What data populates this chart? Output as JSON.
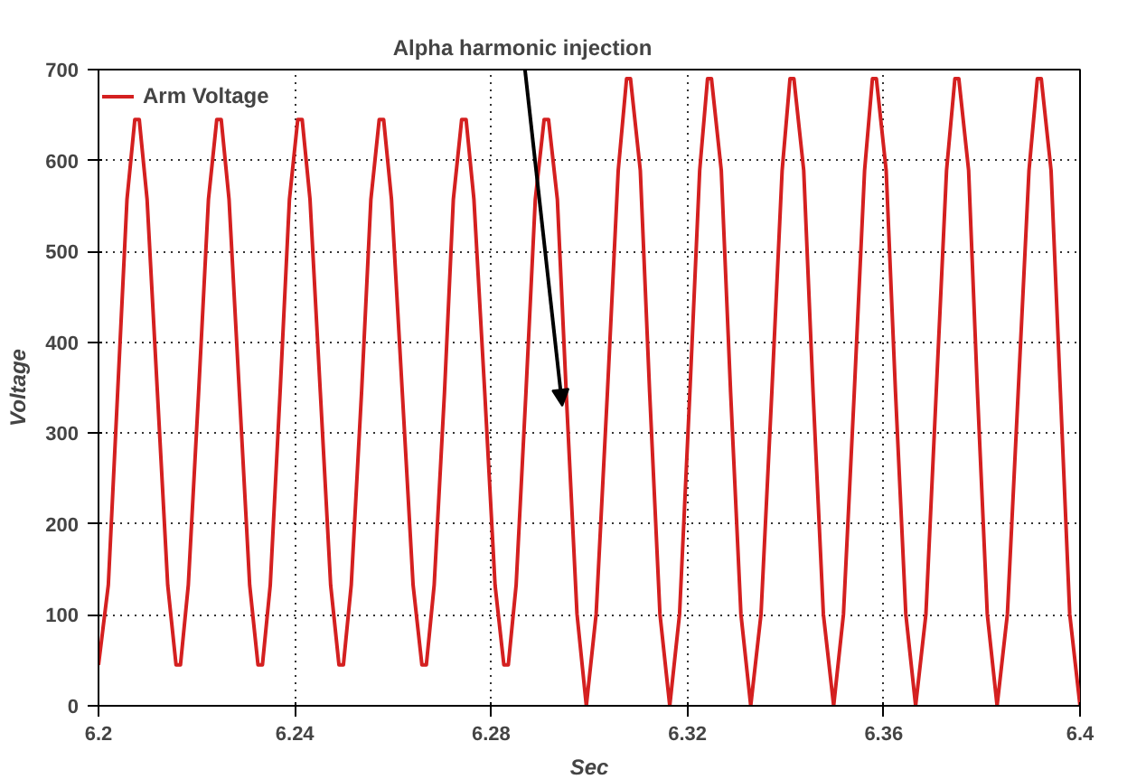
{
  "chart_data": {
    "type": "line",
    "xlabel": "Sec",
    "ylabel": "Voltage",
    "xlim": [
      6.2,
      6.4
    ],
    "ylim": [
      0,
      700
    ],
    "xticks": [
      6.2,
      6.24,
      6.28,
      6.32,
      6.36,
      6.4
    ],
    "yticks": [
      0,
      100,
      200,
      300,
      400,
      500,
      600,
      700
    ],
    "grid": true,
    "legend": "top left",
    "line_style": "solid",
    "annotations": [
      {
        "text": "Alpha harmonic injection",
        "x": 6.2945,
        "y": 330
      }
    ],
    "series": [
      {
        "name": "Arm Voltage",
        "color": "#d42020",
        "x": [
          6.2,
          6.202,
          6.2039,
          6.2058,
          6.2074,
          6.2083,
          6.2099,
          6.212,
          6.2141,
          6.2158,
          6.2167,
          6.2183,
          6.2204,
          6.2224,
          6.2241,
          6.225,
          6.2266,
          6.2287,
          6.2308,
          6.2325,
          6.2334,
          6.235,
          6.237,
          6.2389,
          6.2406,
          6.2415,
          6.2431,
          6.2452,
          6.2473,
          6.249,
          6.2499,
          6.2515,
          6.2536,
          6.2555,
          6.2572,
          6.2581,
          6.2597,
          6.2619,
          6.2641,
          6.2659,
          6.2668,
          6.2684,
          6.2705,
          6.2723,
          6.274,
          6.2749,
          6.2765,
          6.2787,
          6.2808,
          6.2826,
          6.2835,
          6.2851,
          6.2871,
          6.289,
          6.2908,
          6.2917,
          6.2935,
          6.2955,
          6.2975,
          6.2994,
          6.3014,
          6.3037,
          6.3059,
          6.3076,
          6.3084,
          6.3104,
          6.3123,
          6.3144,
          6.3164,
          6.3184,
          6.3205,
          6.3225,
          6.3241,
          6.3249,
          6.3269,
          6.3288,
          6.3309,
          6.3329,
          6.335,
          6.3372,
          6.3393,
          6.3409,
          6.3417,
          6.3437,
          6.3456,
          6.3477,
          6.3498,
          6.3518,
          6.354,
          6.3561,
          6.3577,
          6.3585,
          6.3605,
          6.3624,
          6.3645,
          6.3665,
          6.3686,
          6.3707,
          6.3728,
          6.3745,
          6.3753,
          6.3773,
          6.3791,
          6.3811,
          6.3831,
          6.3852,
          6.3874,
          6.3896,
          6.3913,
          6.3921,
          6.3941,
          6.396,
          6.3979,
          6.4
        ],
        "values": [
          45,
          133,
          345,
          557,
          645,
          645,
          557,
          345,
          133,
          45,
          45,
          133,
          345,
          557,
          645,
          645,
          557,
          345,
          133,
          45,
          45,
          133,
          345,
          557,
          645,
          645,
          557,
          345,
          133,
          45,
          45,
          133,
          345,
          557,
          645,
          645,
          557,
          345,
          133,
          45,
          45,
          133,
          345,
          557,
          645,
          645,
          557,
          345,
          133,
          45,
          45,
          133,
          345,
          557,
          645,
          645,
          557,
          322,
          101,
          0,
          101,
          345,
          589,
          690,
          690,
          589,
          345,
          101,
          0,
          101,
          345,
          589,
          690,
          690,
          589,
          345,
          101,
          0,
          101,
          345,
          589,
          690,
          690,
          589,
          345,
          101,
          0,
          101,
          345,
          589,
          690,
          690,
          589,
          345,
          101,
          0,
          101,
          345,
          589,
          690,
          690,
          589,
          345,
          101,
          0,
          101,
          345,
          589,
          690,
          690,
          589,
          345,
          101,
          0
        ]
      }
    ]
  }
}
